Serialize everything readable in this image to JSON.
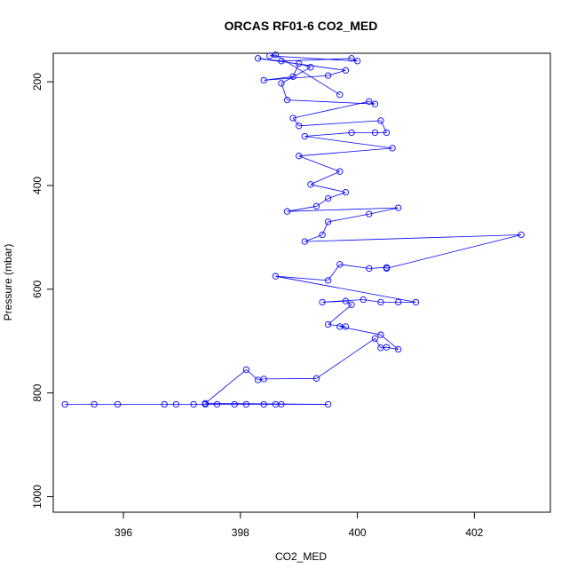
{
  "chart_data": {
    "type": "scatter",
    "title": "ORCAS RF01-6 CO2_MED",
    "xlabel": "CO2_MED",
    "ylabel": "Pressure (mbar)",
    "xlim": [
      394.8,
      403.3
    ],
    "ylim": [
      1030,
      145
    ],
    "y_reversed": true,
    "xticks": [
      396,
      398,
      400,
      402
    ],
    "yticks": [
      200,
      400,
      600,
      800,
      1000
    ],
    "grid": false,
    "point_style": "open-circle-connected",
    "series": [
      {
        "color": "#0000ff",
        "points": [
          [
            395.0,
            822
          ],
          [
            395.5,
            822
          ],
          [
            395.9,
            822
          ],
          [
            396.7,
            822
          ],
          [
            396.9,
            822
          ],
          [
            397.2,
            822
          ],
          [
            397.4,
            822
          ],
          [
            397.6,
            822
          ],
          [
            397.9,
            822
          ],
          [
            398.1,
            822
          ],
          [
            398.4,
            822
          ],
          [
            398.6,
            822
          ],
          [
            398.7,
            822
          ],
          [
            399.5,
            822
          ],
          [
            397.4,
            820
          ],
          [
            398.1,
            755
          ],
          [
            398.3,
            775
          ],
          [
            398.4,
            773
          ],
          [
            399.3,
            772
          ],
          [
            400.3,
            695
          ],
          [
            400.4,
            713
          ],
          [
            400.5,
            712
          ],
          [
            400.7,
            716
          ],
          [
            400.4,
            688
          ],
          [
            399.7,
            672
          ],
          [
            399.8,
            672
          ],
          [
            399.5,
            668
          ],
          [
            399.9,
            630
          ],
          [
            399.8,
            623
          ],
          [
            399.4,
            625
          ],
          [
            400.1,
            620
          ],
          [
            400.4,
            625
          ],
          [
            400.7,
            625
          ],
          [
            401.0,
            625
          ],
          [
            398.6,
            575
          ],
          [
            399.5,
            583
          ],
          [
            399.7,
            552
          ],
          [
            400.2,
            560
          ],
          [
            400.5,
            558
          ],
          [
            400.5,
            560
          ],
          [
            402.8,
            495
          ],
          [
            399.1,
            508
          ],
          [
            399.4,
            495
          ],
          [
            399.5,
            470
          ],
          [
            400.2,
            455
          ],
          [
            400.7,
            443
          ],
          [
            398.8,
            450
          ],
          [
            399.3,
            440
          ],
          [
            399.5,
            425
          ],
          [
            399.8,
            413
          ],
          [
            399.2,
            398
          ],
          [
            399.7,
            373
          ],
          [
            399.0,
            343
          ],
          [
            400.6,
            328
          ],
          [
            399.1,
            305
          ],
          [
            399.9,
            298
          ],
          [
            400.3,
            298
          ],
          [
            400.5,
            298
          ],
          [
            400.4,
            275
          ],
          [
            399.0,
            285
          ],
          [
            398.9,
            270
          ],
          [
            400.2,
            238
          ],
          [
            400.3,
            243
          ],
          [
            398.8,
            235
          ],
          [
            398.7,
            203
          ],
          [
            399.2,
            172
          ],
          [
            399.0,
            165
          ],
          [
            398.9,
            190
          ],
          [
            398.4,
            197
          ],
          [
            399.5,
            188
          ],
          [
            399.8,
            178
          ],
          [
            398.3,
            155
          ],
          [
            398.7,
            160
          ],
          [
            399.9,
            155
          ],
          [
            400.0,
            160
          ],
          [
            398.5,
            150
          ],
          [
            398.6,
            148
          ],
          [
            399.7,
            225
          ]
        ]
      }
    ]
  }
}
